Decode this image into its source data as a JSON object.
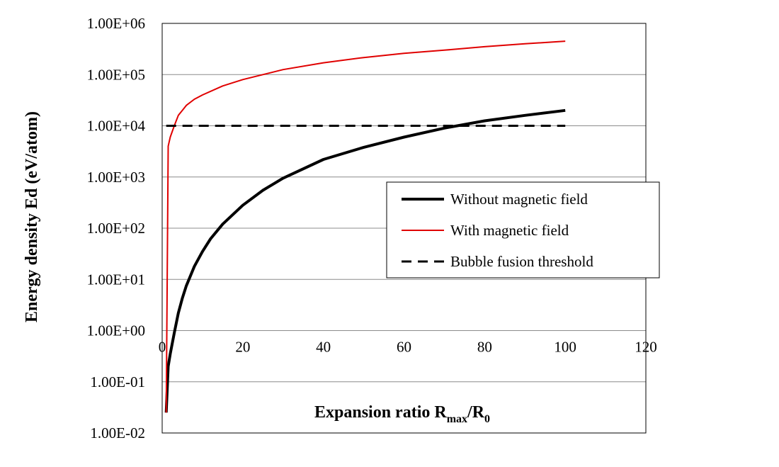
{
  "chart_data": {
    "type": "line",
    "xlabel": "Expansion ratio R",
    "xlabel_sub1": "max",
    "xlabel_mid": "/R",
    "xlabel_sub2": "0",
    "ylabel": "Energy density  Ed (eV/atom)",
    "x_ticks": [
      "0",
      "20",
      "40",
      "60",
      "80",
      "100",
      "120"
    ],
    "y_ticks": [
      "1.00E-02",
      "1.00E-01",
      "1.00E+00",
      "1.00E+01",
      "1.00E+02",
      "1.00E+03",
      "1.00E+04",
      "1.00E+05",
      "1.00E+06"
    ],
    "xlim": [
      0,
      120
    ],
    "ylim": [
      0.01,
      1000000
    ],
    "y_scale": "log",
    "grid": "horizontal",
    "legend_position": "center-right",
    "series": [
      {
        "name": "Without magnetic field",
        "color": "#000000",
        "style": "solid-thick",
        "x": [
          1,
          1.5,
          2,
          3,
          4,
          5,
          6,
          8,
          10,
          12,
          15,
          20,
          25,
          30,
          40,
          50,
          60,
          70,
          80,
          90,
          100
        ],
        "y": [
          0.025,
          0.2,
          0.35,
          0.9,
          2.2,
          4.3,
          7.5,
          18,
          35,
          62,
          120,
          280,
          550,
          950,
          2200,
          3800,
          6000,
          9000,
          12500,
          16000,
          20000
        ]
      },
      {
        "name": "With magnetic field",
        "color": "#e00000",
        "style": "solid-thin",
        "x": [
          1,
          1.5,
          2,
          3,
          4,
          5,
          6,
          8,
          10,
          15,
          20,
          30,
          40,
          50,
          60,
          70,
          80,
          90,
          100
        ],
        "y": [
          0.025,
          4000,
          6000,
          10000,
          16000,
          20000,
          25000,
          33000,
          40000,
          60000,
          80000,
          125000,
          170000,
          215000,
          260000,
          300000,
          350000,
          400000,
          450000
        ]
      },
      {
        "name": "Bubble fusion threshold",
        "color": "#000000",
        "style": "dashed",
        "x": [
          1,
          100
        ],
        "y": [
          10000,
          10000
        ]
      }
    ]
  }
}
